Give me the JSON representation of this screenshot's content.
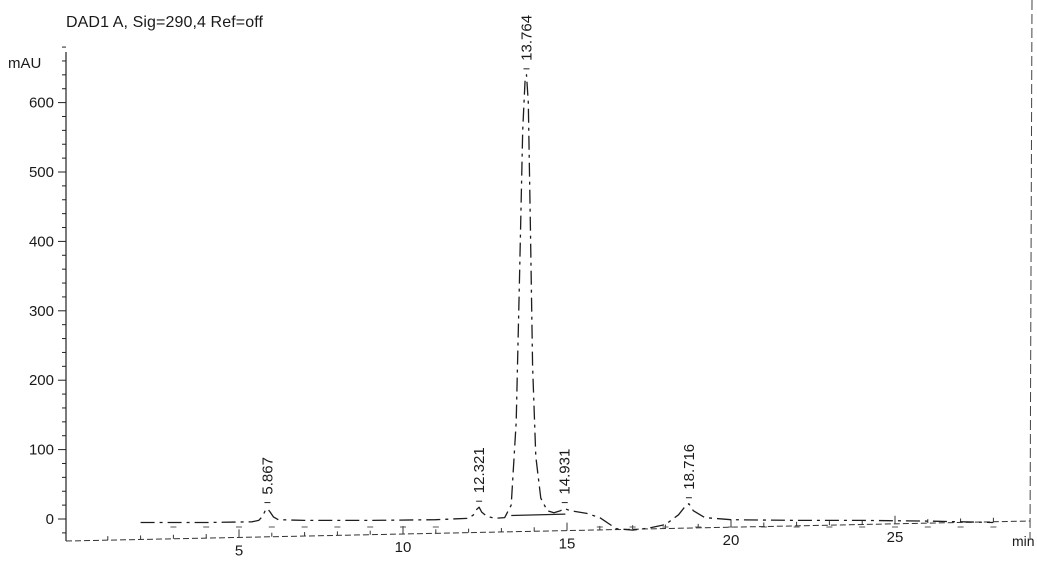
{
  "chart_data": {
    "type": "line",
    "title": "DAD1 A, Sig=290,4 Ref=off",
    "xlabel": "min",
    "ylabel": "mAU",
    "xlim": [
      0,
      28.5
    ],
    "ylim": [
      -30,
      680
    ],
    "x_ticks": [
      5,
      10,
      15,
      20,
      25
    ],
    "y_ticks": [
      0,
      100,
      200,
      300,
      400,
      500,
      600
    ],
    "grid": false,
    "series": [
      {
        "x": [
          2.0,
          4.0,
          5.4,
          5.6,
          5.72,
          5.8,
          5.867,
          5.95,
          6.05,
          6.2,
          7.0,
          9.0,
          11.0,
          12.0,
          12.15,
          12.25,
          12.321,
          12.4,
          12.55,
          12.8,
          13.1,
          13.3,
          13.45,
          13.55,
          13.65,
          13.72,
          13.764,
          13.82,
          13.88,
          13.95,
          14.05,
          14.2,
          14.4,
          14.6,
          14.8,
          14.931,
          15.1,
          15.6,
          16.0,
          16.5,
          17.0,
          17.5,
          18.0,
          18.4,
          18.6,
          18.716,
          18.85,
          19.2,
          20.0,
          22.0,
          24.0,
          26.0,
          28.0
        ],
        "y": [
          -5,
          -5,
          -4,
          -2,
          4,
          12,
          15,
          10,
          3,
          -1,
          -2,
          -2,
          -1,
          1,
          6,
          14,
          17,
          10,
          4,
          1,
          2,
          20,
          140,
          340,
          560,
          630,
          640,
          600,
          430,
          220,
          90,
          30,
          12,
          9,
          12,
          15,
          12,
          8,
          2,
          -14,
          -16,
          -13,
          -8,
          6,
          18,
          22,
          12,
          2,
          -1,
          -2,
          -2,
          -3,
          -5
        ]
      }
    ],
    "peak_labels": [
      "5.867",
      "12.321",
      "13.764",
      "14.931",
      "18.716"
    ],
    "peak_times": [
      5.867,
      12.321,
      13.764,
      14.931,
      18.716
    ],
    "peak_heights": [
      15,
      17,
      640,
      15,
      22
    ]
  }
}
